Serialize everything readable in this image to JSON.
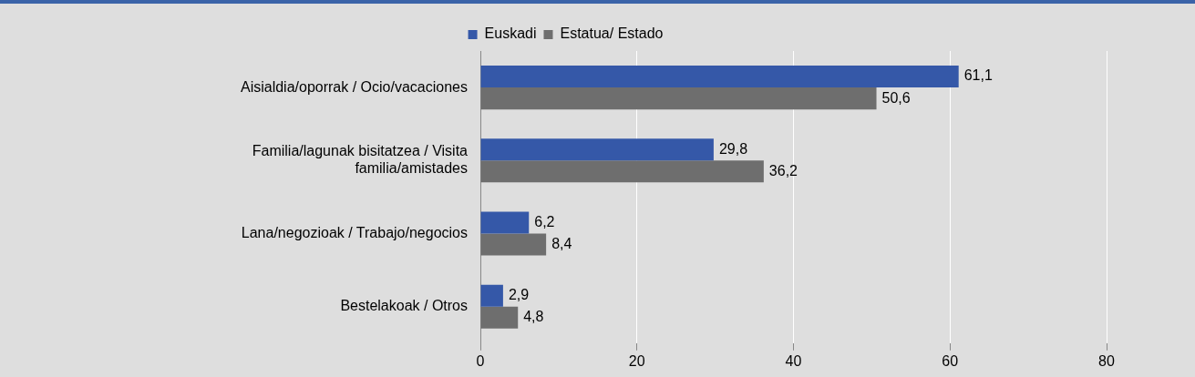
{
  "chart_data": {
    "type": "bar",
    "orientation": "horizontal",
    "categories": [
      "Aisialdia/oporrak / Ocio/vacaciones",
      "Familia/lagunak bisitatzea / Visita familia/amistades",
      "Lana/negozioak / Trabajo/negocios",
      "Bestelakoak / Otros"
    ],
    "series": [
      {
        "name": "Euskadi",
        "color": "#3558a8",
        "values": [
          61.1,
          29.8,
          6.2,
          2.9
        ],
        "value_labels": [
          "61,1",
          "29,8",
          "6,2",
          "2,9"
        ]
      },
      {
        "name": "Estatua/ Estado",
        "color": "#6e6e6e",
        "values": [
          50.6,
          36.2,
          8.4,
          4.8
        ],
        "value_labels": [
          "50,6",
          "36,2",
          "8,4",
          "4,8"
        ]
      }
    ],
    "xlim": [
      0,
      80
    ],
    "xticks": [
      0,
      20,
      40,
      60,
      80
    ],
    "grid": "x",
    "legend": "top"
  }
}
